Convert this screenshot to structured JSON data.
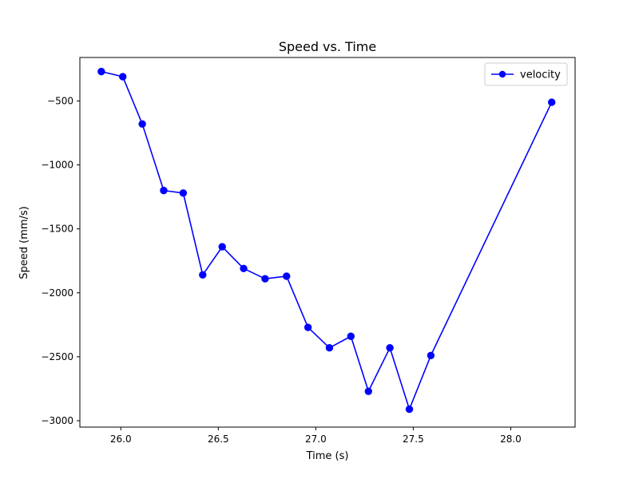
{
  "chart_data": {
    "type": "line",
    "title": "Speed vs. Time",
    "xlabel": "Time (s)",
    "ylabel": "Speed (mm/s)",
    "xlim": [
      25.79,
      28.33
    ],
    "ylim": [
      -3050,
      -160
    ],
    "xticks": [
      26.0,
      26.5,
      27.0,
      27.5,
      28.0
    ],
    "xtick_labels": [
      "26.0",
      "26.5",
      "27.0",
      "27.5",
      "28.0"
    ],
    "yticks": [
      -3000,
      -2500,
      -2000,
      -1500,
      -1000,
      -500
    ],
    "ytick_labels": [
      "−3000",
      "−2500",
      "−2000",
      "−1500",
      "−1000",
      "−500"
    ],
    "grid": false,
    "legend": {
      "position": "upper right",
      "entries": [
        "velocity"
      ]
    },
    "series": [
      {
        "name": "velocity",
        "color": "#0000ff",
        "marker": "circle",
        "x": [
          25.9,
          26.01,
          26.11,
          26.22,
          26.32,
          26.42,
          26.52,
          26.63,
          26.74,
          26.85,
          26.96,
          27.07,
          27.18,
          27.27,
          27.38,
          27.48,
          27.59,
          28.21
        ],
        "y": [
          -270,
          -310,
          -680,
          -1200,
          -1220,
          -1860,
          -1640,
          -1810,
          -1890,
          -1870,
          -2270,
          -2430,
          -2340,
          -2770,
          -2430,
          -2910,
          -2490,
          -510
        ]
      }
    ]
  }
}
